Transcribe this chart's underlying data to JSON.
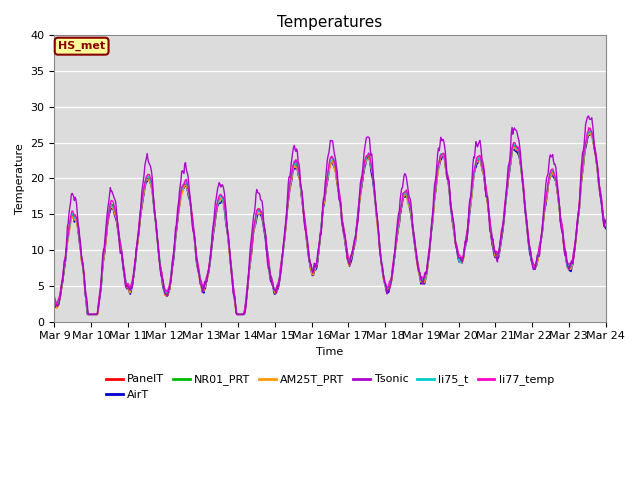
{
  "title": "Temperatures",
  "xlabel": "Time",
  "ylabel": "Temperature",
  "ylim": [
    0,
    40
  ],
  "xlim_days": [
    9,
    24
  ],
  "series": [
    {
      "name": "PanelT",
      "color": "#ff0000"
    },
    {
      "name": "AirT",
      "color": "#0000cc"
    },
    {
      "name": "NR01_PRT",
      "color": "#00bb00"
    },
    {
      "name": "AM25T_PRT",
      "color": "#ff9900"
    },
    {
      "name": "Tsonic",
      "color": "#aa00cc"
    },
    {
      "name": "li75_t",
      "color": "#00cccc"
    },
    {
      "name": "li77_temp",
      "color": "#ff00cc"
    }
  ],
  "hs_met_label": "HS_met",
  "hs_met_bg": "#ffff99",
  "hs_met_border": "#880000",
  "bg_color": "#dcdcdc",
  "title_fontsize": 11,
  "label_fontsize": 8,
  "tick_fontsize": 8
}
